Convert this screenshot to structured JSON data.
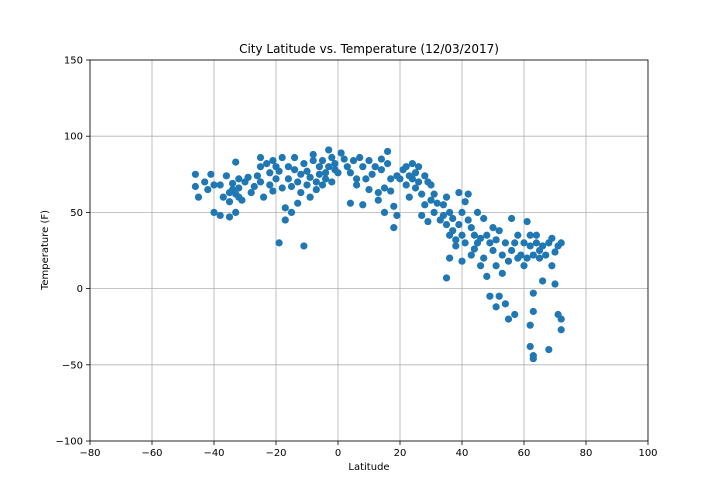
{
  "chart_data": {
    "type": "scatter",
    "title": "City Latitude vs. Temperature (12/03/2017)",
    "xlabel": "Latitude",
    "ylabel": "Temperature (F)",
    "xlim": [
      -80,
      100
    ],
    "ylim": [
      -100,
      150
    ],
    "xticks": [
      -80,
      -60,
      -40,
      -20,
      0,
      20,
      40,
      60,
      80,
      100
    ],
    "yticks": [
      -100,
      -50,
      0,
      50,
      100,
      150
    ],
    "grid": true,
    "marker_color": "#1f77b4",
    "points": [
      [
        -46,
        75
      ],
      [
        -46,
        67
      ],
      [
        -45,
        60
      ],
      [
        -43,
        70
      ],
      [
        -42,
        65
      ],
      [
        -41,
        75
      ],
      [
        -40,
        68
      ],
      [
        -40,
        50
      ],
      [
        -38,
        48
      ],
      [
        -38,
        68
      ],
      [
        -37,
        60
      ],
      [
        -36,
        74
      ],
      [
        -35,
        47
      ],
      [
        -35,
        63
      ],
      [
        -35,
        57
      ],
      [
        -34,
        65
      ],
      [
        -34,
        69
      ],
      [
        -33,
        83
      ],
      [
        -33,
        50
      ],
      [
        -33,
        62
      ],
      [
        -32,
        72
      ],
      [
        -32,
        66
      ],
      [
        -32,
        60
      ],
      [
        -31,
        58
      ],
      [
        -30,
        70
      ],
      [
        -29,
        73
      ],
      [
        -28,
        63
      ],
      [
        -27,
        67
      ],
      [
        -26,
        74
      ],
      [
        -25,
        86
      ],
      [
        -25,
        80
      ],
      [
        -25,
        70
      ],
      [
        -24,
        60
      ],
      [
        -23,
        82
      ],
      [
        -22,
        76
      ],
      [
        -22,
        68
      ],
      [
        -21,
        84
      ],
      [
        -21,
        64
      ],
      [
        -20,
        72
      ],
      [
        -20,
        80
      ],
      [
        -19,
        30
      ],
      [
        -19,
        77
      ],
      [
        -18,
        86
      ],
      [
        -18,
        66
      ],
      [
        -17,
        45
      ],
      [
        -17,
        53
      ],
      [
        -16,
        72
      ],
      [
        -16,
        80
      ],
      [
        -15,
        67
      ],
      [
        -15,
        50
      ],
      [
        -14,
        78
      ],
      [
        -14,
        86
      ],
      [
        -13,
        56
      ],
      [
        -13,
        70
      ],
      [
        -12,
        63
      ],
      [
        -12,
        75
      ],
      [
        -11,
        28
      ],
      [
        -11,
        82
      ],
      [
        -10,
        68
      ],
      [
        -10,
        77
      ],
      [
        -9,
        60
      ],
      [
        -9,
        73
      ],
      [
        -8,
        84
      ],
      [
        -8,
        88
      ],
      [
        -7,
        65
      ],
      [
        -7,
        70
      ],
      [
        -6,
        80
      ],
      [
        -6,
        75
      ],
      [
        -5,
        68
      ],
      [
        -5,
        84
      ],
      [
        -4,
        72
      ],
      [
        -4,
        76
      ],
      [
        -3,
        91
      ],
      [
        -3,
        80
      ],
      [
        -2,
        86
      ],
      [
        -2,
        70
      ],
      [
        -1,
        82
      ],
      [
        -1,
        78
      ],
      [
        0,
        76
      ],
      [
        1,
        89
      ],
      [
        2,
        85
      ],
      [
        3,
        80
      ],
      [
        4,
        76
      ],
      [
        4,
        56
      ],
      [
        5,
        84
      ],
      [
        6,
        72
      ],
      [
        6,
        68
      ],
      [
        7,
        86
      ],
      [
        8,
        55
      ],
      [
        8,
        80
      ],
      [
        9,
        72
      ],
      [
        10,
        65
      ],
      [
        10,
        84
      ],
      [
        11,
        75
      ],
      [
        12,
        80
      ],
      [
        13,
        63
      ],
      [
        13,
        58
      ],
      [
        14,
        85
      ],
      [
        14,
        78
      ],
      [
        15,
        66
      ],
      [
        15,
        50
      ],
      [
        16,
        82
      ],
      [
        16,
        90
      ],
      [
        17,
        72
      ],
      [
        17,
        64
      ],
      [
        18,
        40
      ],
      [
        18,
        54
      ],
      [
        19,
        74
      ],
      [
        19,
        48
      ],
      [
        20,
        72
      ],
      [
        21,
        78
      ],
      [
        22,
        80
      ],
      [
        22,
        68
      ],
      [
        23,
        74
      ],
      [
        23,
        60
      ],
      [
        24,
        72
      ],
      [
        24,
        82
      ],
      [
        25,
        76
      ],
      [
        25,
        66
      ],
      [
        26,
        80
      ],
      [
        26,
        70
      ],
      [
        27,
        62
      ],
      [
        27,
        48
      ],
      [
        28,
        74
      ],
      [
        28,
        55
      ],
      [
        29,
        70
      ],
      [
        29,
        44
      ],
      [
        30,
        58
      ],
      [
        30,
        68
      ],
      [
        31,
        62
      ],
      [
        31,
        50
      ],
      [
        32,
        56
      ],
      [
        33,
        45
      ],
      [
        34,
        48
      ],
      [
        34,
        55
      ],
      [
        35,
        42
      ],
      [
        35,
        60
      ],
      [
        35,
        7
      ],
      [
        36,
        50
      ],
      [
        36,
        35
      ],
      [
        36,
        20
      ],
      [
        37,
        38
      ],
      [
        37,
        46
      ],
      [
        38,
        28
      ],
      [
        38,
        32
      ],
      [
        39,
        42
      ],
      [
        39,
        63
      ],
      [
        40,
        50
      ],
      [
        40,
        18
      ],
      [
        40,
        35
      ],
      [
        41,
        30
      ],
      [
        41,
        57
      ],
      [
        42,
        45
      ],
      [
        42,
        62
      ],
      [
        43,
        22
      ],
      [
        43,
        40
      ],
      [
        44,
        26
      ],
      [
        44,
        35
      ],
      [
        45,
        50
      ],
      [
        45,
        30
      ],
      [
        46,
        33
      ],
      [
        46,
        15
      ],
      [
        47,
        20
      ],
      [
        47,
        46
      ],
      [
        48,
        8
      ],
      [
        48,
        35
      ],
      [
        49,
        -5
      ],
      [
        49,
        30
      ],
      [
        50,
        25
      ],
      [
        50,
        40
      ],
      [
        51,
        -12
      ],
      [
        51,
        32
      ],
      [
        51,
        15
      ],
      [
        52,
        38
      ],
      [
        52,
        -5
      ],
      [
        53,
        22
      ],
      [
        53,
        10
      ],
      [
        54,
        30
      ],
      [
        54,
        -10
      ],
      [
        55,
        18
      ],
      [
        55,
        -20
      ],
      [
        56,
        46
      ],
      [
        56,
        25
      ],
      [
        57,
        30
      ],
      [
        57,
        -17
      ],
      [
        58,
        20
      ],
      [
        58,
        35
      ],
      [
        59,
        22
      ],
      [
        60,
        15
      ],
      [
        60,
        30
      ],
      [
        61,
        44
      ],
      [
        61,
        20
      ],
      [
        62,
        -38
      ],
      [
        62,
        -24
      ],
      [
        62,
        28
      ],
      [
        62,
        35
      ],
      [
        63,
        -44
      ],
      [
        63,
        -46
      ],
      [
        63,
        -3
      ],
      [
        63,
        -15
      ],
      [
        63,
        22
      ],
      [
        64,
        30
      ],
      [
        64,
        35
      ],
      [
        65,
        25
      ],
      [
        65,
        20
      ],
      [
        66,
        28
      ],
      [
        66,
        5
      ],
      [
        67,
        22
      ],
      [
        68,
        30
      ],
      [
        68,
        -40
      ],
      [
        69,
        15
      ],
      [
        69,
        33
      ],
      [
        70,
        3
      ],
      [
        70,
        24
      ],
      [
        71,
        -17
      ],
      [
        71,
        28
      ],
      [
        72,
        30
      ],
      [
        72,
        -20
      ],
      [
        72,
        -27
      ]
    ]
  }
}
